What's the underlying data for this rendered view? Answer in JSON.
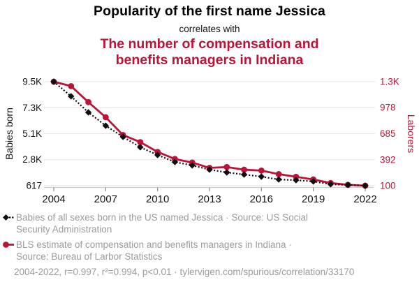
{
  "header": {
    "title": "Popularity of the first name Jessica",
    "connector": "correlates with",
    "subtitle": "The number of compensation and benefits managers in Indiana"
  },
  "colors": {
    "accent_red": "#BC1339",
    "series_black": "#0f0f0f",
    "muted_gray": "#9b9b9b",
    "gridline": "#e8e8e8",
    "axis_line": "#c9c9c9",
    "tick_text": "#151515"
  },
  "chart_data": {
    "type": "line",
    "title": "Popularity of the first name Jessica",
    "subtitle": "The number of compensation and benefits managers in Indiana",
    "grid": true,
    "legend_position": "bottom-left",
    "x": [
      2004,
      2005,
      2006,
      2007,
      2008,
      2009,
      2010,
      2011,
      2012,
      2013,
      2014,
      2015,
      2016,
      2017,
      2018,
      2019,
      2020,
      2021,
      2022
    ],
    "x_tick_labels": [
      "2004",
      "2007",
      "2010",
      "2013",
      "2016",
      "2019",
      "2022"
    ],
    "series": [
      {
        "key": "jessica",
        "name": "Babies of all sexes born in the US named Jessica",
        "axis": "left",
        "line_style": "dashed",
        "marker": "diamond",
        "color": "#0f0f0f",
        "values": [
          9500,
          8250,
          6880,
          5740,
          4790,
          3900,
          3240,
          2640,
          2350,
          1990,
          1750,
          1570,
          1390,
          1150,
          1090,
          980,
          740,
          680,
          617
        ]
      },
      {
        "key": "laborers",
        "name": "BLS estimate of compensation and benefits managers in Indiana",
        "axis": "right",
        "line_style": "solid",
        "marker": "circle",
        "color": "#BC1339",
        "values": [
          1270,
          1220,
          1040,
          870,
          670,
          590,
          480,
          400,
          360,
          300,
          310,
          280,
          270,
          230,
          200,
          170,
          130,
          110,
          100
        ]
      }
    ],
    "left_axis": {
      "label": "Babies born",
      "min": 617,
      "max": 9500,
      "ticks": [
        {
          "value": 9500,
          "label": "9.5K"
        },
        {
          "value": 7279,
          "label": "7.3K"
        },
        {
          "value": 5059,
          "label": "5.1K"
        },
        {
          "value": 2838,
          "label": "2.8K"
        },
        {
          "value": 617,
          "label": "617"
        }
      ]
    },
    "right_axis": {
      "label": "Laborers",
      "min": 100,
      "max": 1270,
      "ticks": [
        {
          "value": 1270,
          "label": "1.3K"
        },
        {
          "value": 978,
          "label": "978"
        },
        {
          "value": 685,
          "label": "685"
        },
        {
          "value": 392,
          "label": "392"
        },
        {
          "value": 100,
          "label": "100"
        }
      ]
    }
  },
  "legend": [
    {
      "marker": "diamond-dashed",
      "color": "#0f0f0f",
      "text": "Babies of all sexes born in the US named Jessica · Source: US Social Security Administration"
    },
    {
      "marker": "circle-solid",
      "color": "#BC1339",
      "text": "BLS estimate of compensation and benefits managers in Indiana · Source: Bureau of Larbor Statistics"
    }
  ],
  "footer": "2004-2022, r=0.997, r²=0.994, p<0.01 · tylervigen.com/spurious/correlation/33170"
}
